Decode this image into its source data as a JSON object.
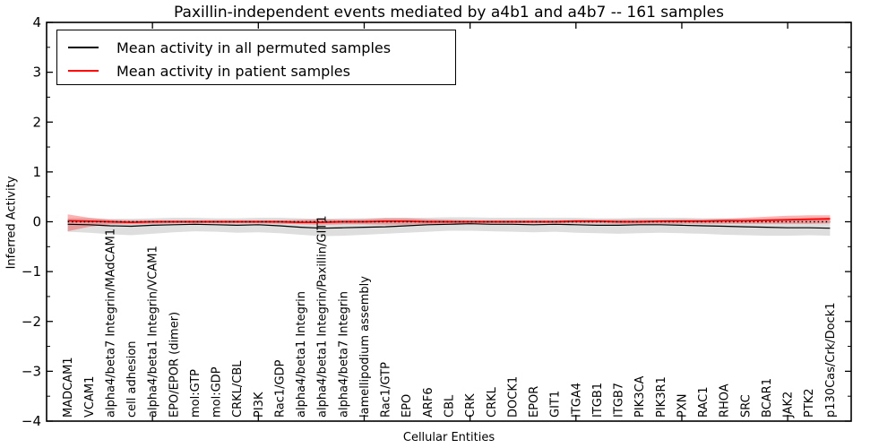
{
  "chart_data": {
    "type": "line",
    "title": "Paxillin-independent events mediated by a4b1 and a4b7 -- 161 samples",
    "xlabel": "Cellular Entities",
    "ylabel": "Inferred Activity",
    "ylim": [
      -4,
      4
    ],
    "xlim": [
      -1,
      37
    ],
    "yticks": [
      4,
      3,
      2,
      1,
      0,
      -1,
      -2,
      -3,
      -4
    ],
    "ytick_minor_step": 0.5,
    "xticks_top_indices": [
      4,
      9,
      14,
      19,
      24,
      29,
      34
    ],
    "grid": "off",
    "legend_position": "upper-left",
    "zero_line": {
      "style": "dotted",
      "color": "#000000",
      "value": 0
    },
    "categories": [
      "MADCAM1",
      "VCAM1",
      "alpha4/beta7 Integrin/MAdCAM1",
      "cell adhesion",
      "alpha4/beta1 Integrin/VCAM1",
      "EPO/EPOR (dimer)",
      "mol:GTP",
      "mol:GDP",
      "CRKL/CBL",
      "PI3K",
      "Rac1/GDP",
      "alpha4/beta1 Integrin",
      "alpha4/beta1 Integrin/Paxillin/GIT1",
      "alpha4/beta7 Integrin",
      "lamellipodium assembly",
      "Rac1/GTP",
      "EPO",
      "ARF6",
      "CBL",
      "CRK",
      "CRKL",
      "DOCK1",
      "EPOR",
      "GIT1",
      "ITGA4",
      "ITGB1",
      "ITGB7",
      "PIK3CA",
      "PIK3R1",
      "PXN",
      "RAC1",
      "RHOA",
      "SRC",
      "BCAR1",
      "JAK2",
      "PTK2",
      "p130Cas/Crk/Dock1"
    ],
    "series": [
      {
        "name": "Mean activity in all permuted samples",
        "color": "#000000",
        "values": [
          -0.05,
          -0.06,
          -0.08,
          -0.09,
          -0.07,
          -0.06,
          -0.05,
          -0.06,
          -0.07,
          -0.06,
          -0.08,
          -0.11,
          -0.13,
          -0.12,
          -0.11,
          -0.1,
          -0.08,
          -0.06,
          -0.05,
          -0.04,
          -0.05,
          -0.05,
          -0.06,
          -0.05,
          -0.06,
          -0.07,
          -0.07,
          -0.06,
          -0.06,
          -0.07,
          -0.08,
          -0.09,
          -0.1,
          -0.11,
          -0.12,
          -0.12,
          -0.13
        ]
      },
      {
        "name": "Mean activity in patient samples",
        "color": "#ff0000",
        "values": [
          0.02,
          0.01,
          0.0,
          -0.01,
          0.0,
          0.0,
          0.0,
          0.0,
          0.0,
          0.0,
          0.0,
          -0.01,
          -0.01,
          0.0,
          0.0,
          0.01,
          0.01,
          0.0,
          0.0,
          0.0,
          0.0,
          0.0,
          0.0,
          0.0,
          0.01,
          0.01,
          0.0,
          0.0,
          0.01,
          0.01,
          0.01,
          0.02,
          0.02,
          0.03,
          0.04,
          0.05,
          0.06
        ]
      }
    ],
    "bands": [
      {
        "name": "permuted samples spread",
        "color": "#999999",
        "opacity": 0.32,
        "upper": [
          0.07,
          0.07,
          0.06,
          0.06,
          0.07,
          0.08,
          0.08,
          0.07,
          0.07,
          0.08,
          0.08,
          0.07,
          0.06,
          0.07,
          0.07,
          0.08,
          0.08,
          0.08,
          0.09,
          0.09,
          0.08,
          0.08,
          0.08,
          0.08,
          0.08,
          0.07,
          0.07,
          0.08,
          0.08,
          0.08,
          0.07,
          0.07,
          0.06,
          0.06,
          0.06,
          0.07,
          0.07
        ],
        "lower": [
          -0.2,
          -0.22,
          -0.25,
          -0.27,
          -0.24,
          -0.21,
          -0.19,
          -0.2,
          -0.22,
          -0.21,
          -0.23,
          -0.26,
          -0.29,
          -0.28,
          -0.26,
          -0.24,
          -0.22,
          -0.2,
          -0.18,
          -0.18,
          -0.19,
          -0.2,
          -0.21,
          -0.2,
          -0.22,
          -0.23,
          -0.24,
          -0.23,
          -0.22,
          -0.23,
          -0.24,
          -0.26,
          -0.27,
          -0.28,
          -0.28,
          -0.27,
          -0.28
        ]
      },
      {
        "name": "patient samples spread",
        "color": "#ff0000",
        "opacity": 0.3,
        "upper": [
          0.15,
          0.08,
          0.04,
          0.03,
          0.03,
          0.03,
          0.03,
          0.03,
          0.03,
          0.03,
          0.03,
          0.04,
          0.05,
          0.04,
          0.05,
          0.07,
          0.07,
          0.05,
          0.04,
          0.03,
          0.03,
          0.03,
          0.03,
          0.03,
          0.04,
          0.04,
          0.04,
          0.04,
          0.04,
          0.05,
          0.05,
          0.06,
          0.08,
          0.1,
          0.12,
          0.13,
          0.13
        ],
        "lower": [
          -0.19,
          -0.1,
          -0.05,
          -0.05,
          -0.04,
          -0.03,
          -0.03,
          -0.03,
          -0.03,
          -0.03,
          -0.04,
          -0.05,
          -0.06,
          -0.05,
          -0.05,
          -0.06,
          -0.06,
          -0.05,
          -0.04,
          -0.03,
          -0.03,
          -0.03,
          -0.03,
          -0.03,
          -0.03,
          -0.03,
          -0.04,
          -0.04,
          -0.04,
          -0.04,
          -0.04,
          -0.04,
          -0.04,
          -0.04,
          -0.04,
          -0.04,
          -0.03
        ]
      }
    ]
  }
}
